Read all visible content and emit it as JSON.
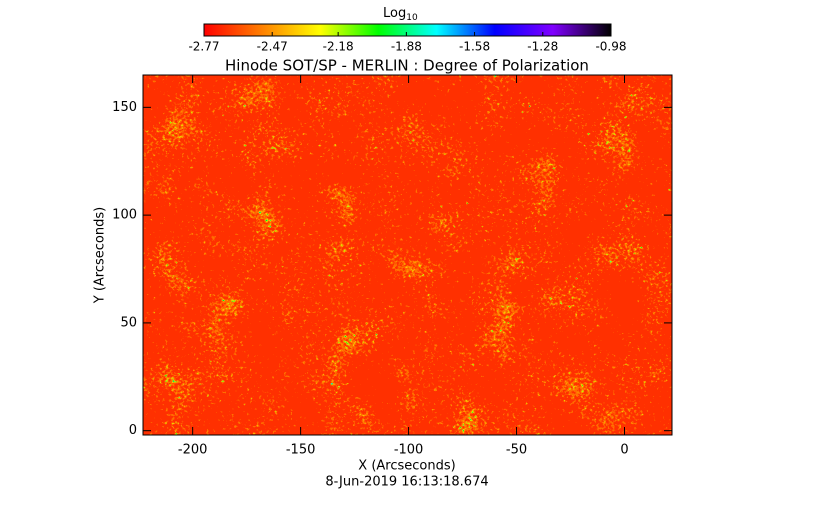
{
  "chart_data": {
    "type": "heatmap",
    "title": "Hinode SOT/SP - MERLIN : Degree of Polarization",
    "x_label": "X (Arcseconds)",
    "y_label": "Y (Arcseconds)",
    "footer": "8-Jun-2019 16:13:18.674",
    "xlim": [
      -223,
      22
    ],
    "ylim": [
      -2,
      165
    ],
    "xticks": [
      -200,
      -150,
      -100,
      -50,
      0
    ],
    "yticks": [
      0,
      50,
      100,
      150
    ],
    "colorbar": {
      "label": "Log",
      "label_subscript": "10",
      "lim": [
        -2.77,
        -0.98
      ],
      "ticks": [
        -2.77,
        -2.47,
        -2.18,
        -1.88,
        -1.58,
        -1.28,
        -0.98
      ],
      "colors": [
        "#ff0000",
        "#ff8000",
        "#ffff00",
        "#00ff00",
        "#00ffff",
        "#0000ff",
        "#8000ff",
        "#000000"
      ]
    }
  }
}
